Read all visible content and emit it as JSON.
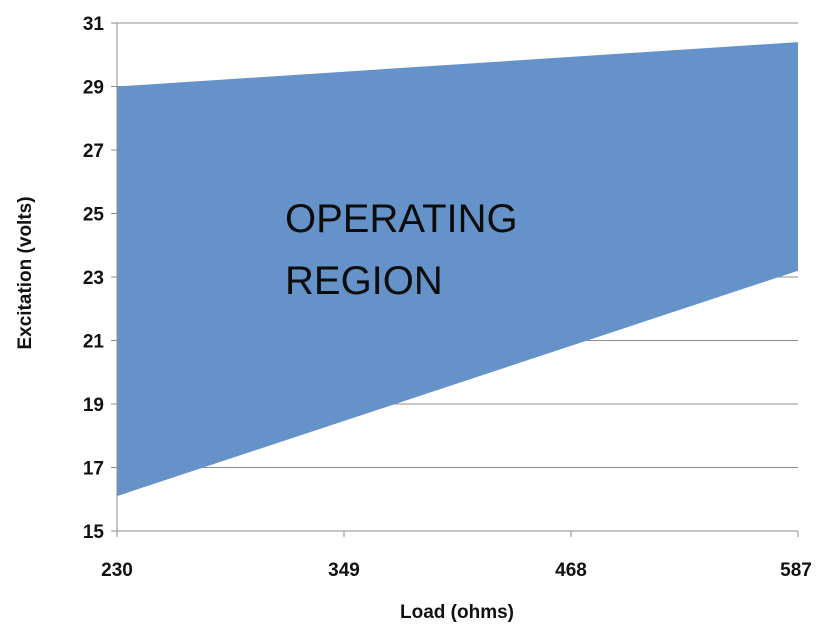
{
  "chart_data": {
    "type": "area",
    "title": "",
    "xlabel": "Load (ohms)",
    "ylabel": "Excitation (volts)",
    "x": [
      230,
      587
    ],
    "xticks": [
      230,
      349,
      468,
      587
    ],
    "yticks": [
      15,
      17,
      19,
      21,
      23,
      25,
      27,
      29,
      31
    ],
    "xlim": [
      230,
      587
    ],
    "ylim": [
      15,
      31
    ],
    "grid": "horizontal",
    "region": {
      "upper": [
        29.0,
        30.4
      ],
      "lower": [
        16.1,
        23.2
      ],
      "color": "#6592c8"
    },
    "annotation_lines": [
      "OPERATING",
      "REGION"
    ]
  }
}
